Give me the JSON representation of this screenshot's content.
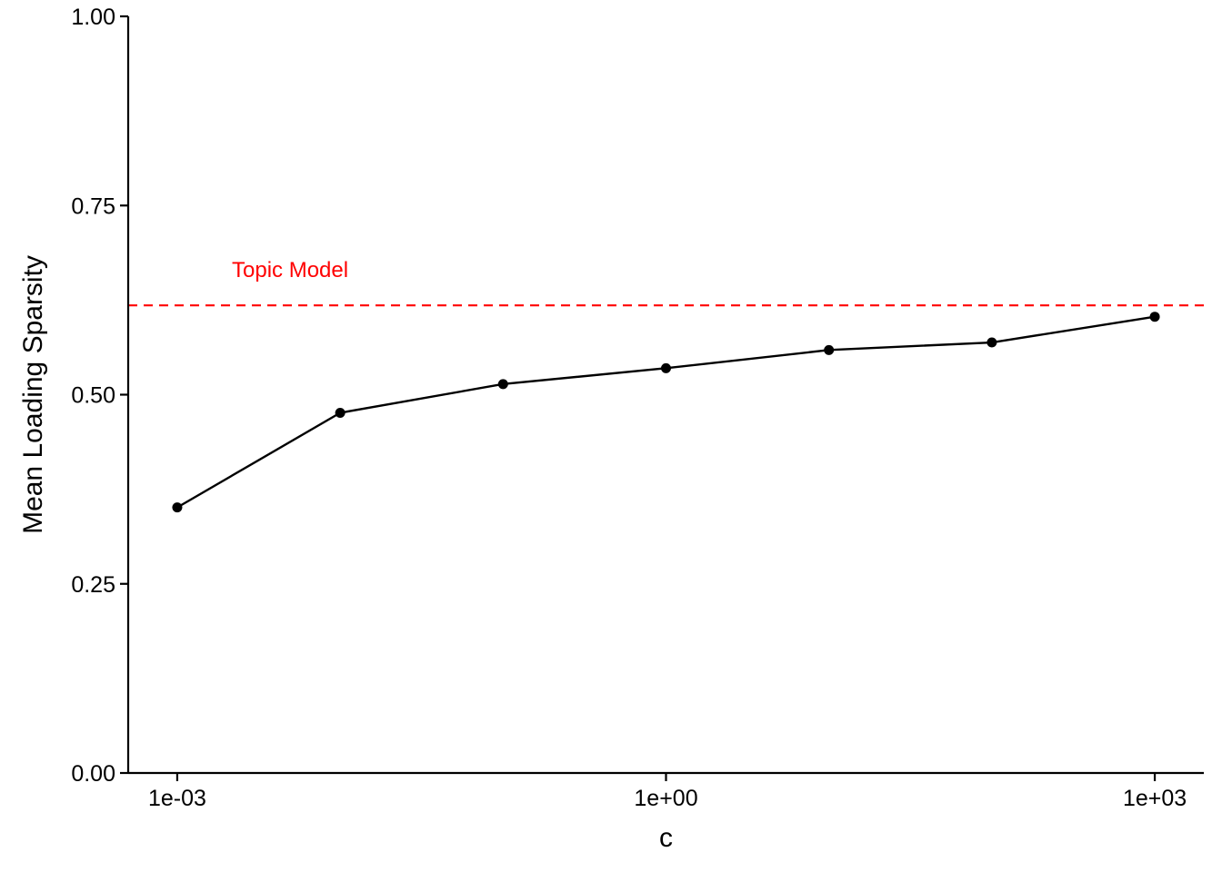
{
  "chart_data": {
    "type": "line",
    "title": "",
    "xlabel": "c",
    "ylabel": "Mean Loading Sparsity",
    "x_scale": "log10",
    "x": [
      0.001,
      0.01,
      0.1,
      1,
      10,
      100,
      1000
    ],
    "x_ticks": [
      0.001,
      1,
      1000
    ],
    "x_tick_labels": [
      "1e-03",
      "1e+00",
      "1e+03"
    ],
    "xlim": [
      0.0005,
      2000
    ],
    "ylim": [
      0,
      1
    ],
    "y_ticks": [
      0,
      0.25,
      0.5,
      0.75,
      1
    ],
    "y_tick_labels": [
      "0.00",
      "0.25",
      "0.50",
      "0.75",
      "1.00"
    ],
    "series": [
      {
        "values": [
          0.351,
          0.476,
          0.514,
          0.535,
          0.559,
          0.569,
          0.603
        ]
      }
    ],
    "reference_line": {
      "y": 0.618,
      "label": "Topic Model",
      "style": "dashed"
    },
    "grid": false,
    "colors": {
      "series": "#000000",
      "reference": "#ff0000",
      "axis": "#000000"
    }
  }
}
